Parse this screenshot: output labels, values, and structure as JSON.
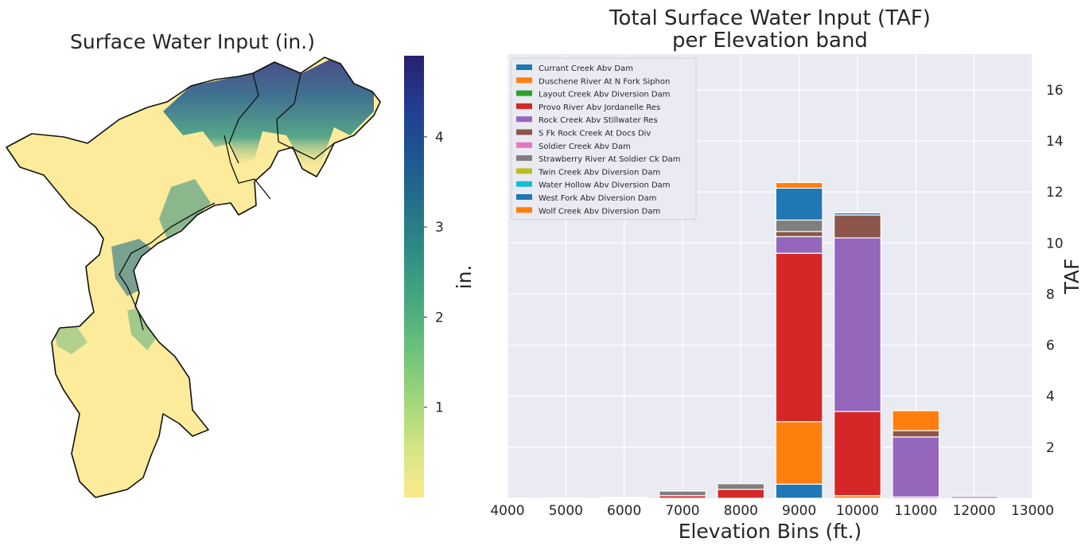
{
  "map_panel": {
    "title": "Surface Water Input (in.)",
    "colorbar_label": "in.",
    "colorbar_ticks": [
      "1",
      "2",
      "3",
      "4"
    ],
    "colorbar_tick_values": [
      1,
      2,
      3,
      4
    ],
    "colorbar_range": [
      0,
      4.9
    ],
    "colormap": [
      "#fde98f",
      "#d5e585",
      "#9fd67a",
      "#6cc27a",
      "#47a87e",
      "#2f8c84",
      "#23708a",
      "#1d5590",
      "#233b91",
      "#28206d"
    ]
  },
  "chart_data": {
    "type": "bar",
    "stacked": true,
    "title": "Total Surface Water Input (TAF)",
    "subtitle": "per Elevation band",
    "xlabel": "Elevation Bins (ft.)",
    "ylabel": "TAF",
    "xlim": [
      4000,
      13000
    ],
    "ylim": [
      0,
      17.4
    ],
    "x_ticks": [
      4000,
      5000,
      6000,
      7000,
      8000,
      9000,
      10000,
      11000,
      12000,
      13000
    ],
    "y_ticks": [
      2,
      4,
      6,
      8,
      10,
      12,
      14,
      16
    ],
    "y_axis_side": "right",
    "grid": true,
    "legend_position": "upper-left",
    "bar_width": 800,
    "categories": [
      4000,
      5000,
      6000,
      7000,
      8000,
      9000,
      10000,
      11000,
      12000
    ],
    "series": [
      {
        "name": "Currant Creek Abv Dam",
        "color": "#1f77b4",
        "values": [
          0,
          0,
          0,
          0,
          0,
          0.55,
          0,
          0,
          0
        ]
      },
      {
        "name": "Duschene River At N Fork Siphon",
        "color": "#ff7f0e",
        "values": [
          0,
          0,
          0,
          0,
          0,
          2.45,
          0.1,
          0,
          0
        ]
      },
      {
        "name": "Layout Creek Abv Diversion Dam",
        "color": "#2ca02c",
        "values": [
          0,
          0,
          0,
          0,
          0,
          0,
          0,
          0,
          0
        ]
      },
      {
        "name": "Provo River Abv Jordanelle Res",
        "color": "#d62728",
        "values": [
          0.005,
          0.01,
          0.02,
          0.1,
          0.35,
          6.6,
          3.3,
          0.05,
          0
        ]
      },
      {
        "name": "Rock Creek Abv Stillwater Res",
        "color": "#9467bd",
        "values": [
          0,
          0,
          0,
          0,
          0,
          0.65,
          6.8,
          2.35,
          0.07
        ]
      },
      {
        "name": "S Fk Rock Creek At Docs Div",
        "color": "#8c564b",
        "values": [
          0,
          0,
          0,
          0,
          0,
          0.2,
          0.9,
          0.25,
          0
        ]
      },
      {
        "name": "Soldier Creek Abv Dam",
        "color": "#e377c2",
        "values": [
          0,
          0,
          0,
          0,
          0,
          0,
          0,
          0,
          0
        ]
      },
      {
        "name": "Strawberry River At Soldier Ck Dam",
        "color": "#7f7f7f",
        "values": [
          0,
          0,
          0.02,
          0.18,
          0.22,
          0.45,
          0,
          0,
          0
        ]
      },
      {
        "name": "Twin Creek Abv Diversion Dam",
        "color": "#bcbd22",
        "values": [
          0,
          0,
          0,
          0,
          0,
          0,
          0,
          0,
          0
        ]
      },
      {
        "name": "Water Hollow Abv Diversion Dam",
        "color": "#17becf",
        "values": [
          0,
          0,
          0,
          0,
          0,
          0,
          0,
          0,
          0
        ]
      },
      {
        "name": "West Fork Abv Diversion Dam",
        "color": "#1f77b4",
        "values": [
          0,
          0,
          0,
          0,
          0,
          1.25,
          0.08,
          0,
          0
        ]
      },
      {
        "name": "Wolf Creek Abv Diversion Dam",
        "color": "#ff7f0e",
        "values": [
          0,
          0,
          0,
          0,
          0,
          0.22,
          0,
          0.78,
          0
        ]
      }
    ]
  }
}
